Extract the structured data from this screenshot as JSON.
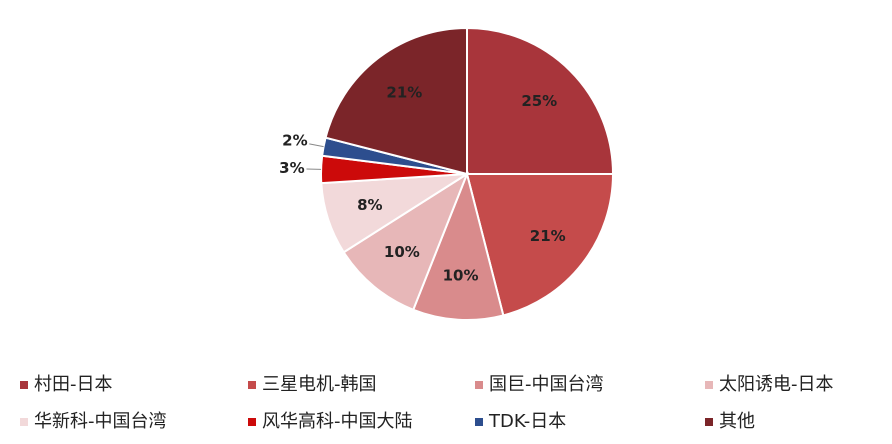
{
  "chart_data": {
    "type": "pie",
    "categories": [
      "村田-日本",
      "三星电机-韩国",
      "国巨-中国台湾",
      "太阳诱电-日本",
      "华新科-中国台湾",
      "风华高科-中国大陆",
      "TDK-日本",
      "其他"
    ],
    "values": [
      25,
      21,
      10,
      10,
      8,
      3,
      2,
      21
    ],
    "value_labels": [
      "25%",
      "21%",
      "10%",
      "10%",
      "8%",
      "3%",
      "2%",
      "21%"
    ],
    "colors": [
      "#a8353b",
      "#c54b4b",
      "#d98b8c",
      "#e7b7b8",
      "#f2d9da",
      "#cc0a0a",
      "#2d4e8e",
      "#7b2529"
    ],
    "legend": "bottom"
  }
}
